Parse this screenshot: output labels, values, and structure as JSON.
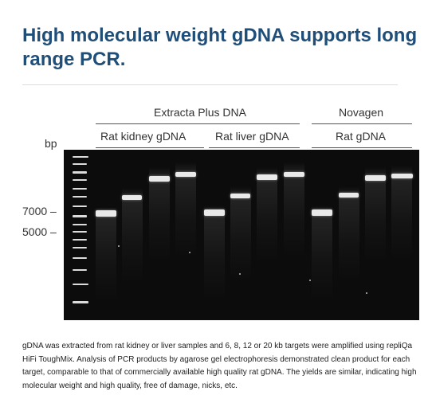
{
  "title": "High molecular weight gDNA supports long range PCR.",
  "figure": {
    "group_headers": {
      "extracta": "Extracta Plus DNA",
      "novagen": "Novagen"
    },
    "subgroup_headers": {
      "kidney": "Rat kidney gDNA",
      "liver": "Rat liver gDNA",
      "novagen_rat": "Rat gDNA"
    },
    "bp_label": "bp",
    "markers": {
      "m7000": "7000 –",
      "m5000": "5000 –"
    },
    "band_color": "#e9e9e9",
    "gel_color": "#0c0c0c"
  },
  "caption": "gDNA was extracted from rat kidney or liver samples and 6, 8, 12 or 20 kb targets were amplified using repliQa HiFi ToughMix. Analysis of PCR products by agarose gel electrophoresis demonstrated clean product for each target, comparable to that of commercially available high quality rat gDNA. The yields are similar, indicating high molecular weight and high quality, free of damage, nicks, etc.",
  "colors": {
    "title": "#1f4e79",
    "rule": "#dcdcdc"
  }
}
